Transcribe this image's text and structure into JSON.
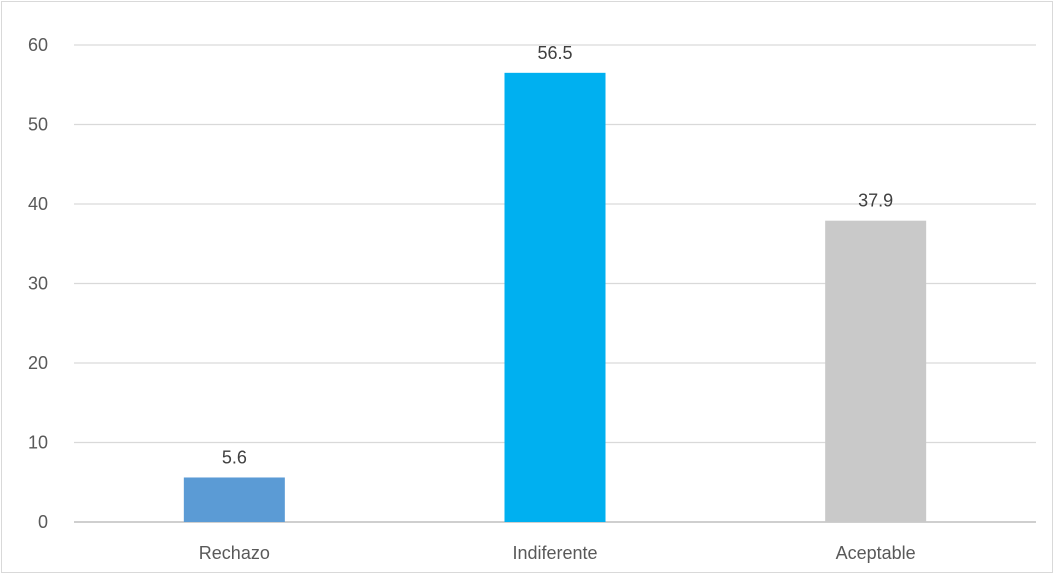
{
  "chart_data": {
    "type": "bar",
    "title": "",
    "xlabel": "",
    "ylabel": "",
    "categories": [
      "Rechazo",
      "Indiferente",
      "Aceptable"
    ],
    "values": [
      5.6,
      56.5,
      37.9
    ],
    "data_labels": [
      "5.6",
      "56.5",
      "37.9"
    ],
    "bar_colors": [
      "#5b9bd5",
      "#00b0f0",
      "#c9c9c9"
    ],
    "ylim": [
      0,
      60
    ],
    "yticks": [
      0,
      10,
      20,
      30,
      40,
      50,
      60
    ],
    "ytick_labels": [
      "0",
      "10",
      "20",
      "30",
      "40",
      "50",
      "60"
    ],
    "grid": true,
    "legend": "none",
    "gridline_color": "#d9d9d9",
    "axis_color": "#bfbfbf"
  }
}
